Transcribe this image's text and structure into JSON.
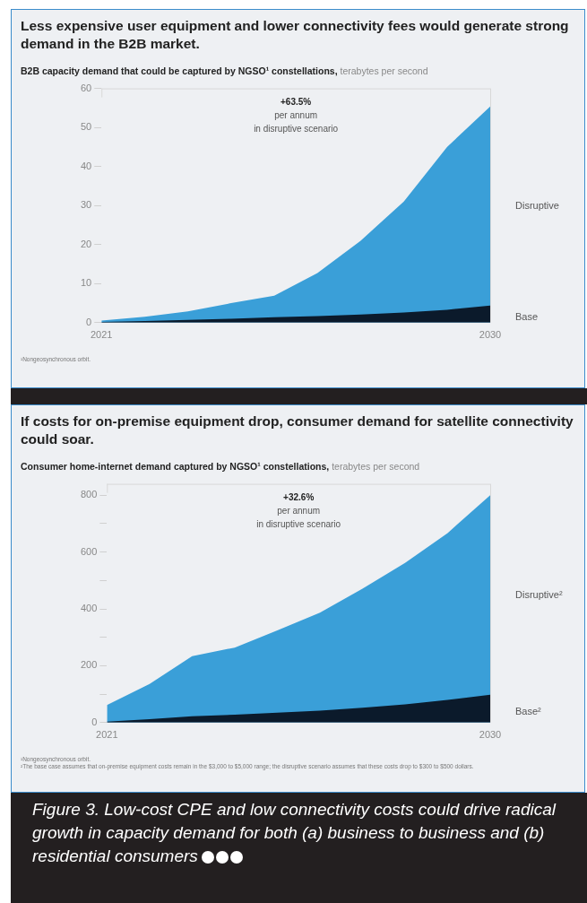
{
  "chart_data": [
    {
      "type": "area",
      "title": "Less expensive user equipment and lower connectivity fees would generate strong demand in the B2B market.",
      "subtitle": "B2B capacity demand that could be captured by NGSO¹ constellations,",
      "ylabel": "terabytes per second",
      "categories": [
        "2021",
        null,
        null,
        null,
        null,
        null,
        null,
        null,
        null,
        "2030"
      ],
      "series": [
        {
          "name": "Disruptive",
          "color": "#3a9fd8",
          "values": [
            0.5,
            1.5,
            2.9,
            5,
            6.9,
            12.7,
            21,
            31,
            45,
            55.4
          ]
        },
        {
          "name": "Base",
          "color": "#0b1a2b",
          "values": [
            0.2,
            0.4,
            0.7,
            1,
            1.4,
            1.7,
            2.1,
            2.6,
            3.3,
            4.4
          ]
        }
      ],
      "ylim": [
        0,
        60
      ],
      "yticks": [
        0,
        10,
        20,
        30,
        40,
        50,
        60
      ],
      "annotations": [
        "+63.5%\nper annum\nin disruptive scenario",
        "¹Nongeosynchronous orbit."
      ]
    },
    {
      "type": "area",
      "title": "If costs for on-premise equipment drop, consumer demand for satellite connectivity could soar.",
      "subtitle": "Consumer home-internet demand captured by NGSO¹ constellations,",
      "ylabel": "terabytes per second",
      "categories": [
        "2021",
        null,
        null,
        null,
        null,
        null,
        null,
        null,
        null,
        "2030"
      ],
      "series": [
        {
          "name": "Disruptive²",
          "color": "#3a9fd8",
          "values": [
            62,
            136,
            234,
            264,
            324,
            387,
            471,
            562,
            667,
            800
          ]
        },
        {
          "name": "Base²",
          "color": "#0b1a2b",
          "values": [
            3,
            12,
            22,
            28,
            35,
            42,
            52,
            64,
            80,
            98
          ]
        }
      ],
      "ylim": [
        0,
        840
      ],
      "yticks": [
        0,
        {
          "value": 100,
          "label": null
        },
        200,
        {
          "value": 300,
          "label": null
        },
        400,
        {
          "value": 500,
          "label": null
        },
        600,
        {
          "value": 700,
          "label": null
        },
        800
      ],
      "annotations": [
        "+32.6%\nper annum\nin disruptive scenario",
        "¹Nongeosynchronous orbit.",
        "²The base case assumes that on-premise equipment costs remain in the $3,000 to $5,000 range; the disruptive scenario assumes that these costs drop to $300 to $500 dollars."
      ]
    },
    {
      "type": "other",
      "title": "Figure 3. Low-cost CPE and low connectivity costs could drive radical growth in capacity demand for both (a) business to business and (b) residential consumers"
    }
  ]
}
